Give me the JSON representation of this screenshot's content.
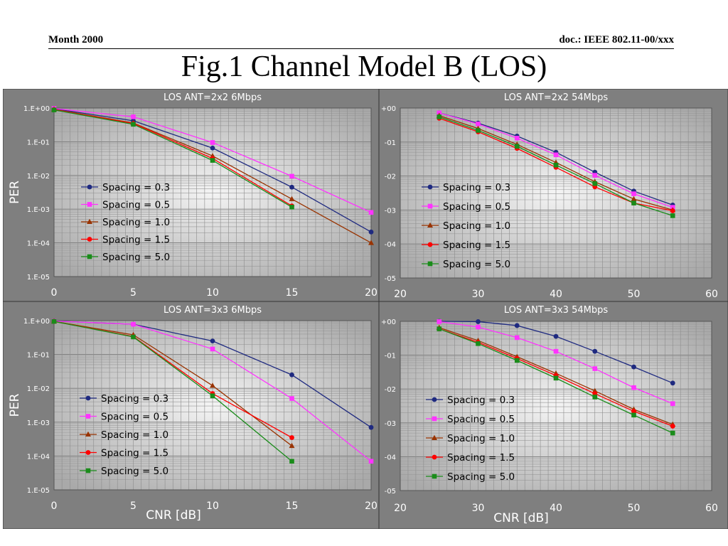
{
  "header": {
    "left": "Month 2000",
    "right": "doc.: IEEE 802.11-00/xxx"
  },
  "slide_title": "Fig.1  Channel Model B (LOS)",
  "colors": {
    "panel_bg": "#7f7f7f",
    "series": [
      "#1f2a80",
      "#ff33ff",
      "#993300",
      "#ff0000",
      "#1a8c1a"
    ]
  },
  "chart_data": [
    {
      "type": "line",
      "title": "LOS ANT=2x2 6Mbps",
      "xlabel": "",
      "ylabel": "PER",
      "xlim": [
        0,
        20
      ],
      "ylim": [
        1e-05,
        1
      ],
      "yscale": "log",
      "x_ticks": [
        "0",
        "5",
        "10",
        "15",
        "20"
      ],
      "y_ticks": [
        "1.E+00",
        "1.E-01",
        "1.E-02",
        "1.E-03",
        "1.E-04",
        "1.E-05"
      ],
      "grid": true,
      "legend": "left",
      "series": [
        {
          "name": "Spacing = 0.3",
          "marker": "circle",
          "x": [
            0,
            5,
            10,
            15,
            20
          ],
          "y": [
            0.95,
            0.42,
            0.065,
            0.0045,
            0.00021
          ]
        },
        {
          "name": "Spacing = 0.5",
          "marker": "square",
          "x": [
            0,
            5,
            10,
            15,
            20
          ],
          "y": [
            0.97,
            0.55,
            0.095,
            0.0095,
            0.0008
          ]
        },
        {
          "name": "Spacing = 1.0",
          "marker": "triangle",
          "x": [
            0,
            5,
            10,
            15,
            20
          ],
          "y": [
            0.92,
            0.36,
            0.038,
            0.002,
            0.0001
          ]
        },
        {
          "name": "Spacing = 1.5",
          "marker": "circle",
          "x": [
            0,
            5,
            10,
            15
          ],
          "y": [
            0.9,
            0.35,
            0.032,
            0.00125
          ]
        },
        {
          "name": "Spacing = 5.0",
          "marker": "square",
          "x": [
            0,
            5,
            10,
            15
          ],
          "y": [
            0.88,
            0.33,
            0.028,
            0.00115
          ]
        }
      ]
    },
    {
      "type": "line",
      "title": "LOS ANT=2x2 54Mbps",
      "xlabel": "",
      "ylabel": "",
      "xlim": [
        20,
        60
      ],
      "ylim": [
        1e-05,
        1
      ],
      "yscale": "log",
      "x_ticks": [
        "20",
        "30",
        "40",
        "50",
        "60"
      ],
      "y_ticks": [
        "+00",
        "-01",
        "-02",
        "-03",
        "-04",
        "-05"
      ],
      "grid": true,
      "legend": "left",
      "series": [
        {
          "name": "Spacing = 0.3",
          "marker": "circle",
          "x": [
            25,
            30,
            35,
            40,
            45,
            50,
            55
          ],
          "y": [
            0.72,
            0.36,
            0.15,
            0.05,
            0.013,
            0.0036,
            0.0014
          ]
        },
        {
          "name": "Spacing = 0.5",
          "marker": "square",
          "x": [
            25,
            30,
            35,
            40,
            45,
            50,
            55
          ],
          "y": [
            0.72,
            0.34,
            0.13,
            0.042,
            0.0105,
            0.003,
            0.0012
          ]
        },
        {
          "name": "Spacing = 1.0",
          "marker": "triangle",
          "x": [
            25,
            30,
            35,
            40,
            45,
            50,
            55
          ],
          "y": [
            0.6,
            0.25,
            0.085,
            0.025,
            0.0068,
            0.0021,
            0.001
          ]
        },
        {
          "name": "Spacing = 1.5",
          "marker": "circle",
          "x": [
            25,
            30,
            35,
            40,
            45,
            50,
            55
          ],
          "y": [
            0.5,
            0.2,
            0.065,
            0.018,
            0.0048,
            0.0016,
            0.00095
          ]
        },
        {
          "name": "Spacing = 5.0",
          "marker": "square",
          "x": [
            25,
            30,
            35,
            40,
            45,
            50,
            55
          ],
          "y": [
            0.55,
            0.22,
            0.075,
            0.021,
            0.006,
            0.0016,
            0.00068
          ]
        }
      ]
    },
    {
      "type": "line",
      "title": "LOS ANT=3x3 6Mbps",
      "xlabel": "CNR [dB]",
      "ylabel": "PER",
      "xlim": [
        0,
        20
      ],
      "ylim": [
        1e-05,
        1
      ],
      "yscale": "log",
      "x_ticks": [
        "0",
        "5",
        "10",
        "15",
        "20"
      ],
      "y_ticks": [
        "1.E+00",
        "1.E-01",
        "1.E-02",
        "1.E-03",
        "1.E-04",
        "1.E-05"
      ],
      "grid": true,
      "legend": "left",
      "series": [
        {
          "name": "Spacing = 0.3",
          "marker": "circle",
          "x": [
            0,
            5,
            10,
            15,
            20
          ],
          "y": [
            0.97,
            0.78,
            0.25,
            0.025,
            0.0007
          ]
        },
        {
          "name": "Spacing = 0.5",
          "marker": "square",
          "x": [
            0,
            5,
            10,
            15,
            20
          ],
          "y": [
            0.97,
            0.78,
            0.145,
            0.005,
            7e-05
          ]
        },
        {
          "name": "Spacing = 1.0",
          "marker": "triangle",
          "x": [
            0,
            5,
            10,
            15
          ],
          "y": [
            0.95,
            0.38,
            0.012,
            0.0002
          ]
        },
        {
          "name": "Spacing = 1.5",
          "marker": "circle",
          "x": [
            0,
            5,
            10,
            15
          ],
          "y": [
            0.95,
            0.34,
            0.007,
            0.00035
          ]
        },
        {
          "name": "Spacing = 5.0",
          "marker": "square",
          "x": [
            0,
            5,
            10,
            15
          ],
          "y": [
            0.95,
            0.33,
            0.006,
            7e-05
          ]
        }
      ]
    },
    {
      "type": "line",
      "title": "LOS ANT=3x3 54Mbps",
      "xlabel": "CNR [dB]",
      "ylabel": "",
      "xlim": [
        20,
        60
      ],
      "ylim": [
        1e-05,
        1
      ],
      "yscale": "log",
      "x_ticks": [
        "20",
        "30",
        "40",
        "50",
        "60"
      ],
      "y_ticks": [
        "+00",
        "-01",
        "-02",
        "-03",
        "-04",
        "-05"
      ],
      "grid": true,
      "legend": "left",
      "series": [
        {
          "name": "Spacing = 0.3",
          "marker": "circle",
          "x": [
            25,
            30,
            35,
            40,
            45,
            50,
            55
          ],
          "y": [
            1.0,
            0.98,
            0.75,
            0.36,
            0.13,
            0.045,
            0.015
          ]
        },
        {
          "name": "Spacing = 0.5",
          "marker": "square",
          "x": [
            25,
            30,
            35,
            40,
            45,
            50,
            55
          ],
          "y": [
            0.98,
            0.68,
            0.33,
            0.13,
            0.04,
            0.011,
            0.0037
          ]
        },
        {
          "name": "Spacing = 1.0",
          "marker": "triangle",
          "x": [
            25,
            30,
            35,
            40,
            45,
            50,
            55
          ],
          "y": [
            0.65,
            0.27,
            0.09,
            0.029,
            0.0088,
            0.0025,
            0.0009
          ]
        },
        {
          "name": "Spacing = 1.5",
          "marker": "circle",
          "x": [
            25,
            30,
            35,
            40,
            45,
            50,
            55
          ],
          "y": [
            0.6,
            0.24,
            0.08,
            0.025,
            0.0073,
            0.0022,
            0.0008
          ]
        },
        {
          "name": "Spacing = 5.0",
          "marker": "square",
          "x": [
            25,
            30,
            35,
            40,
            45,
            50,
            55
          ],
          "y": [
            0.6,
            0.22,
            0.07,
            0.021,
            0.0058,
            0.0017,
            0.0005
          ]
        }
      ]
    }
  ]
}
